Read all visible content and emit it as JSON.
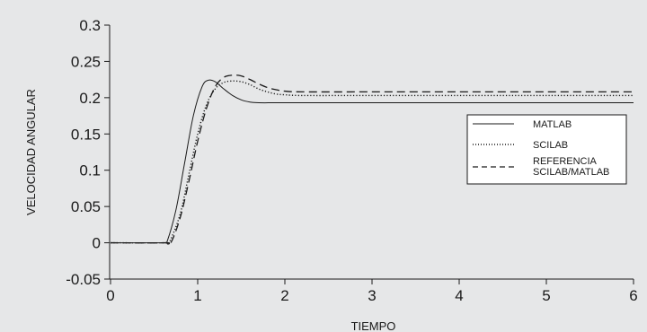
{
  "chart_data": {
    "type": "line",
    "xlabel": "TIEMPO",
    "ylabel": "VELOCIDAD ANGULAR",
    "xlim": [
      0,
      6
    ],
    "ylim": [
      -0.05,
      0.3
    ],
    "xticks": [
      0,
      1,
      2,
      3,
      4,
      5,
      6
    ],
    "xtick_labels": [
      "0",
      "1",
      "2",
      "3",
      "4",
      "5",
      "6"
    ],
    "yticks": [
      -0.05,
      0,
      0.05,
      0.1,
      0.15,
      0.2,
      0.25,
      0.3
    ],
    "ytick_labels": [
      "-0.05",
      "0",
      "0.05",
      "0.1",
      "0.15",
      "0.2",
      "0.25",
      "0.3"
    ],
    "grid": false,
    "legend_position": "right",
    "legend_lines": [
      [
        "MATLAB"
      ],
      [
        "SCILAB"
      ],
      [
        "REFERENCIA",
        "SCILAB/MATLAB"
      ]
    ],
    "series": [
      {
        "name": "MATLAB",
        "style": "solid",
        "x": [
          0,
          0.62,
          0.65,
          0.75,
          0.85,
          0.95,
          1.05,
          1.12,
          1.2,
          1.3,
          1.4,
          1.5,
          1.6,
          1.7,
          2.0,
          3.0,
          4.0,
          5.0,
          6.0
        ],
        "y": [
          0,
          0,
          0.002,
          0.045,
          0.11,
          0.175,
          0.215,
          0.224,
          0.222,
          0.212,
          0.203,
          0.197,
          0.194,
          0.193,
          0.193,
          0.193,
          0.193,
          0.193,
          0.193
        ]
      },
      {
        "name": "SCILAB",
        "style": "dotted",
        "x": [
          0,
          0.63,
          0.68,
          0.8,
          0.9,
          1.0,
          1.1,
          1.2,
          1.3,
          1.4,
          1.5,
          1.6,
          1.7,
          1.8,
          1.9,
          2.0,
          2.2,
          3.0,
          4.0,
          5.0,
          6.0
        ],
        "y": [
          0,
          0,
          0.002,
          0.04,
          0.095,
          0.15,
          0.19,
          0.212,
          0.221,
          0.223,
          0.222,
          0.218,
          0.212,
          0.208,
          0.205,
          0.204,
          0.203,
          0.203,
          0.203,
          0.203,
          0.203
        ]
      },
      {
        "name": "REFERENCIA SCILAB/MATLAB",
        "style": "dashed",
        "x": [
          0,
          0.64,
          0.7,
          0.8,
          0.9,
          1.0,
          1.1,
          1.2,
          1.3,
          1.4,
          1.5,
          1.6,
          1.7,
          1.8,
          1.9,
          2.0,
          2.2,
          3.0,
          4.0,
          5.0,
          6.0
        ],
        "y": [
          0,
          0,
          0.002,
          0.035,
          0.085,
          0.14,
          0.185,
          0.215,
          0.228,
          0.231,
          0.23,
          0.225,
          0.219,
          0.214,
          0.211,
          0.209,
          0.208,
          0.208,
          0.208,
          0.208,
          0.208
        ]
      }
    ]
  }
}
